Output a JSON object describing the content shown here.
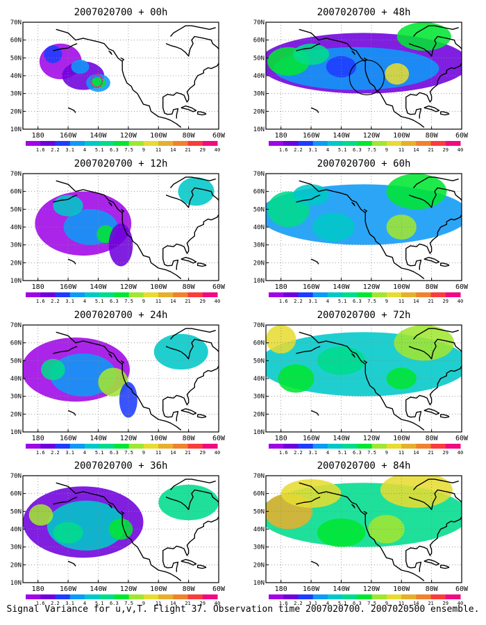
{
  "caption": "Signal Variance for u,v,T. Flight 37. Observation time 2007020700. 2007020500 ensemble.",
  "chart_data": {
    "type": "heatmap",
    "lon_ticks": [
      "180",
      "160W",
      "140W",
      "120W",
      "100W",
      "80W",
      "60W"
    ],
    "lat_ticks": [
      "10N",
      "20N",
      "30N",
      "40N",
      "50N",
      "60N",
      "70N"
    ],
    "lon_range": [
      -190,
      -60
    ],
    "lat_range": [
      10,
      70
    ],
    "grid": "dotted",
    "colorbar": {
      "labels": [
        "1.6",
        "2.2",
        "3.1",
        "4",
        "5.1",
        "6.3",
        "7.5",
        "9",
        "11",
        "14",
        "21",
        "29",
        "40"
      ],
      "colors": [
        "#9f06e6",
        "#6e00dc",
        "#1e3cff",
        "#0e9af6",
        "#00c8c8",
        "#00dc8c",
        "#00e632",
        "#a0e632",
        "#e6dc32",
        "#e6af2d",
        "#f0822d",
        "#fa3c3c",
        "#f00a82"
      ]
    },
    "panels": [
      {
        "title": "2007020700 + 00h",
        "blobs": [
          [
            -165,
            48,
            14,
            10,
            0
          ],
          [
            -150,
            40,
            14,
            8,
            1
          ],
          [
            -140,
            36,
            8,
            5,
            3
          ],
          [
            -170,
            52,
            6,
            5,
            2
          ],
          [
            -140,
            36,
            5,
            3,
            6
          ],
          [
            -152,
            45,
            6,
            4,
            3
          ]
        ]
      },
      {
        "title": "2007020700 + 48h",
        "blobs": [
          [
            -125,
            47,
            70,
            17,
            1
          ],
          [
            -130,
            44,
            55,
            12,
            3
          ],
          [
            -175,
            48,
            14,
            8,
            6
          ],
          [
            -160,
            52,
            12,
            6,
            5
          ],
          [
            -103,
            41,
            8,
            6,
            8
          ],
          [
            -85,
            62,
            18,
            8,
            6
          ],
          [
            -140,
            45,
            10,
            6,
            2
          ]
        ]
      },
      {
        "title": "2007020700 + 12h",
        "blobs": [
          [
            -150,
            42,
            32,
            18,
            0
          ],
          [
            -145,
            40,
            18,
            10,
            3
          ],
          [
            -135,
            36,
            6,
            5,
            6
          ],
          [
            -160,
            52,
            10,
            6,
            4
          ],
          [
            -125,
            30,
            8,
            12,
            1
          ],
          [
            -75,
            60,
            12,
            8,
            4
          ]
        ]
      },
      {
        "title": "2007020700 + 60h",
        "blobs": [
          [
            -125,
            47,
            70,
            17,
            3
          ],
          [
            -175,
            50,
            14,
            10,
            5
          ],
          [
            -100,
            40,
            10,
            7,
            7
          ],
          [
            -90,
            60,
            20,
            10,
            6
          ],
          [
            -145,
            40,
            14,
            8,
            4
          ],
          [
            -160,
            58,
            12,
            6,
            4
          ]
        ]
      },
      {
        "title": "2007020700 + 24h",
        "blobs": [
          [
            -155,
            45,
            36,
            18,
            0
          ],
          [
            -150,
            42,
            22,
            12,
            3
          ],
          [
            -130,
            38,
            10,
            8,
            7
          ],
          [
            -170,
            45,
            8,
            6,
            5
          ],
          [
            -85,
            55,
            18,
            10,
            4
          ],
          [
            -120,
            28,
            6,
            10,
            2
          ]
        ]
      },
      {
        "title": "2007020700 + 72h",
        "blobs": [
          [
            -125,
            48,
            70,
            18,
            4
          ],
          [
            -180,
            62,
            10,
            8,
            8
          ],
          [
            -170,
            40,
            12,
            8,
            6
          ],
          [
            -100,
            40,
            10,
            6,
            6
          ],
          [
            -85,
            60,
            20,
            10,
            7
          ],
          [
            -140,
            50,
            16,
            8,
            5
          ]
        ]
      },
      {
        "title": "2007020700 + 36h",
        "blobs": [
          [
            -150,
            44,
            40,
            20,
            1
          ],
          [
            -148,
            42,
            26,
            14,
            4
          ],
          [
            -178,
            48,
            8,
            6,
            7
          ],
          [
            -125,
            40,
            8,
            6,
            6
          ],
          [
            -160,
            38,
            10,
            6,
            5
          ],
          [
            -80,
            55,
            20,
            10,
            5
          ]
        ]
      },
      {
        "title": "2007020700 + 84h",
        "blobs": [
          [
            -125,
            48,
            70,
            18,
            5
          ],
          [
            -175,
            50,
            16,
            10,
            9
          ],
          [
            -160,
            60,
            20,
            8,
            8
          ],
          [
            -90,
            62,
            24,
            10,
            8
          ],
          [
            -110,
            40,
            12,
            8,
            7
          ],
          [
            -140,
            38,
            16,
            8,
            6
          ]
        ]
      }
    ]
  }
}
